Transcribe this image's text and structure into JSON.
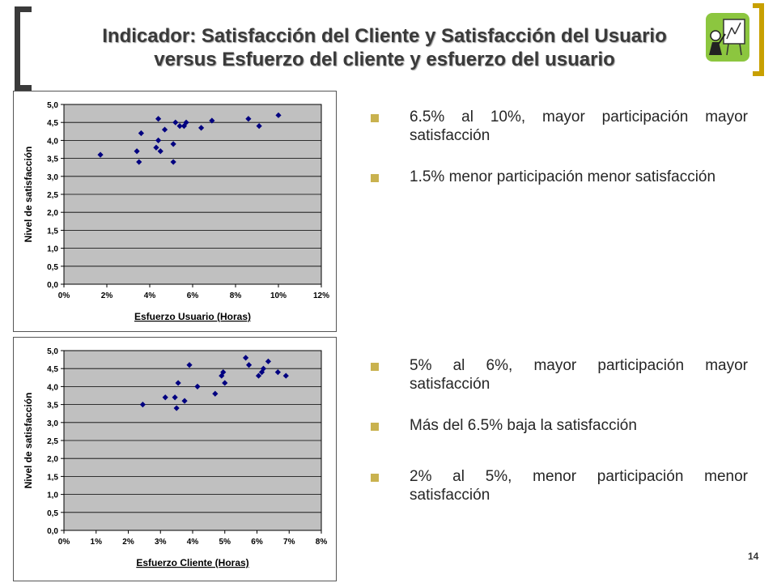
{
  "header": {
    "title_line1": "Indicador: Satisfacción del Cliente y Satisfacción del Usuario",
    "title_line2": "versus Esfuerzo del cliente y esfuerzo del usuario",
    "logo_icon": "presenter-with-board-icon",
    "accent_color": "#c8a000"
  },
  "bullets_top": [
    "6.5% al 10%, mayor participación mayor satisfacción",
    "1.5% menor participación menor satisfacción"
  ],
  "bullets_bottom": [
    "5% al 6%, mayor participación mayor satisfacción",
    "Más del 6.5% baja la satisfacción",
    "2% al 5%, menor participación menor satisfacción"
  ],
  "bullet_color": "#c9b24f",
  "page_number": "14",
  "chart_data": [
    {
      "type": "scatter",
      "title": "",
      "xlabel": "Esfuerzo Usuario (Horas)",
      "ylabel": "Nivel de satisfacción",
      "xlim": [
        0,
        0.12
      ],
      "ylim": [
        0,
        5
      ],
      "x_ticks": [
        0,
        0.02,
        0.04,
        0.06,
        0.08,
        0.1,
        0.12
      ],
      "x_tick_labels": [
        "0%",
        "2%",
        "4%",
        "6%",
        "8%",
        "10%",
        "12%"
      ],
      "y_ticks": [
        0,
        0.5,
        1,
        1.5,
        2,
        2.5,
        3,
        3.5,
        4,
        4.5,
        5
      ],
      "y_tick_labels": [
        "0,0",
        "0,5",
        "1,0",
        "1,5",
        "2,0",
        "2,5",
        "3,0",
        "3,5",
        "4,0",
        "4,5",
        "5,0"
      ],
      "grid": "horizontal",
      "plot_background": "#c0c0c0",
      "marker_color": "#000080",
      "points": [
        [
          0.017,
          3.6
        ],
        [
          0.034,
          3.7
        ],
        [
          0.035,
          3.4
        ],
        [
          0.036,
          4.2
        ],
        [
          0.043,
          3.8
        ],
        [
          0.044,
          4.0
        ],
        [
          0.044,
          4.6
        ],
        [
          0.045,
          3.7
        ],
        [
          0.047,
          4.3
        ],
        [
          0.051,
          3.9
        ],
        [
          0.051,
          3.4
        ],
        [
          0.052,
          4.5
        ],
        [
          0.054,
          4.4
        ],
        [
          0.056,
          4.4
        ],
        [
          0.057,
          4.5
        ],
        [
          0.064,
          4.35
        ],
        [
          0.069,
          4.55
        ],
        [
          0.086,
          4.6
        ],
        [
          0.091,
          4.4
        ],
        [
          0.1,
          4.7
        ]
      ]
    },
    {
      "type": "scatter",
      "title": "",
      "xlabel": "Esfuerzo Cliente (Horas)",
      "ylabel": "Nivel de satisfacción",
      "xlim": [
        0,
        0.08
      ],
      "ylim": [
        0,
        5
      ],
      "x_ticks": [
        0,
        0.01,
        0.02,
        0.03,
        0.04,
        0.05,
        0.06,
        0.07,
        0.08
      ],
      "x_tick_labels": [
        "0%",
        "1%",
        "2%",
        "3%",
        "4%",
        "5%",
        "6%",
        "7%",
        "8%"
      ],
      "y_ticks": [
        0,
        0.5,
        1,
        1.5,
        2,
        2.5,
        3,
        3.5,
        4,
        4.5,
        5
      ],
      "y_tick_labels": [
        "0,0",
        "0,5",
        "1,0",
        "1,5",
        "2,0",
        "2,5",
        "3,0",
        "3,5",
        "4,0",
        "4,5",
        "5,0"
      ],
      "grid": "horizontal",
      "plot_background": "#c0c0c0",
      "marker_color": "#000080",
      "points": [
        [
          0.0245,
          3.5
        ],
        [
          0.0315,
          3.7
        ],
        [
          0.0345,
          3.7
        ],
        [
          0.035,
          3.4
        ],
        [
          0.0355,
          4.1
        ],
        [
          0.0375,
          3.6
        ],
        [
          0.039,
          4.6
        ],
        [
          0.0415,
          4.0
        ],
        [
          0.047,
          3.8
        ],
        [
          0.049,
          4.3
        ],
        [
          0.0495,
          4.4
        ],
        [
          0.05,
          4.1
        ],
        [
          0.0565,
          4.8
        ],
        [
          0.0575,
          4.6
        ],
        [
          0.0605,
          4.3
        ],
        [
          0.0615,
          4.4
        ],
        [
          0.062,
          4.5
        ],
        [
          0.0635,
          4.7
        ],
        [
          0.0665,
          4.4
        ],
        [
          0.069,
          4.3
        ]
      ]
    }
  ]
}
